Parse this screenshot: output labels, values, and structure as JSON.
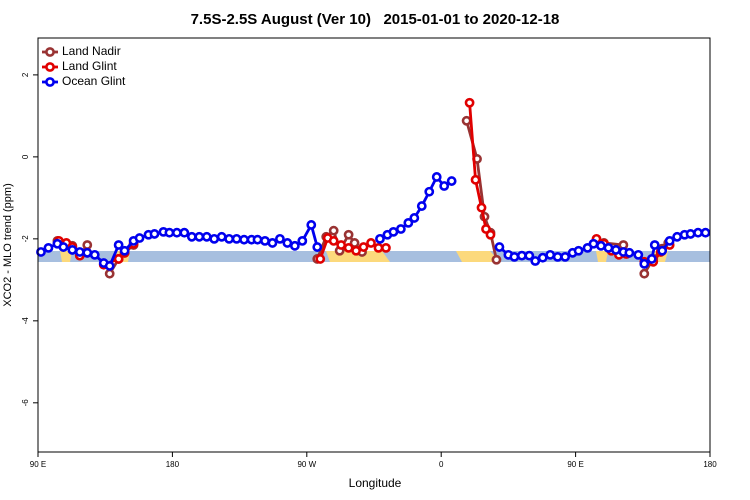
{
  "chart_data": {
    "type": "line",
    "title": "7.5S-2.5S August (Ver 10)   2015-01-01 to 2020-12-18",
    "x_label": "Longitude",
    "y_label": "XCO2 - MLO trend (ppm)",
    "xlim": [
      90,
      540
    ],
    "xticks": [
      {
        "value": 90,
        "label": "90 E"
      },
      {
        "value": 180,
        "label": "180"
      },
      {
        "value": 270,
        "label": "90 W"
      },
      {
        "value": 360,
        "label": "0"
      },
      {
        "value": 450,
        "label": "90 E"
      },
      {
        "value": 540,
        "label": "180"
      }
    ],
    "ylim": [
      -7.2,
      2.9
    ],
    "yticks": [
      2,
      0,
      -2,
      -4,
      -6
    ],
    "legend": "top-left",
    "series": [
      {
        "name": "Land Nadir",
        "color": "#993333",
        "x": [
          103,
          107,
          113,
          118,
          123,
          null,
          138,
          144,
          148,
          154,
          null,
          277,
          283,
          288,
          292,
          298,
          302,
          307,
          null,
          377,
          384,
          389,
          393,
          397,
          null,
          464,
          469,
          482,
          null,
          496,
          502,
          508,
          512
        ],
        "values": [
          -2.05,
          -2.12,
          -2.17,
          -2.41,
          -2.15,
          null,
          -2.85,
          -2.49,
          -2.34,
          -2.15,
          null,
          -2.49,
          -1.95,
          -1.8,
          -2.29,
          -1.9,
          -2.1,
          -2.32,
          null,
          0.88,
          -0.05,
          -1.46,
          -1.85,
          -2.51,
          null,
          -2.05,
          -2.1,
          -2.15,
          null,
          -2.85,
          -2.49,
          -2.24,
          -2.1
        ]
      },
      {
        "name": "Land Glint",
        "color": "#e00000",
        "x": [
          104,
          109,
          113,
          118,
          123,
          null,
          134,
          144,
          148,
          154,
          null,
          279,
          284,
          288,
          293,
          298,
          303,
          308,
          313,
          318,
          323,
          null,
          379,
          383,
          387,
          390,
          393,
          null,
          464,
          469,
          474,
          479,
          484,
          null,
          496,
          502,
          507,
          513
        ],
        "values": [
          -2.05,
          -2.1,
          -2.2,
          -2.41,
          -2.34,
          null,
          -2.63,
          -2.49,
          -2.34,
          -2.12,
          null,
          -2.49,
          -1.98,
          -2.05,
          -2.15,
          -2.22,
          -2.29,
          -2.2,
          -2.1,
          -2.22,
          -2.22,
          null,
          1.32,
          -0.56,
          -1.24,
          -1.76,
          -1.9,
          null,
          -2.0,
          -2.12,
          -2.29,
          -2.39,
          -2.37,
          null,
          -2.56,
          -2.56,
          -2.32,
          -2.15
        ]
      },
      {
        "name": "Ocean Glint",
        "color": "#0000ee",
        "x": [
          92,
          97,
          103,
          107,
          113,
          118,
          123,
          128,
          134,
          138,
          144,
          148,
          154,
          158,
          164,
          168,
          174,
          178,
          183,
          188,
          193,
          198,
          203,
          208,
          213,
          218,
          223,
          228,
          233,
          237,
          242,
          247,
          252,
          257,
          262,
          267,
          273,
          277,
          null,
          319,
          324,
          328,
          333,
          338,
          342,
          347,
          352,
          357,
          362,
          367,
          null,
          399,
          405,
          409,
          414,
          419,
          423,
          428,
          433,
          438,
          443,
          448,
          452,
          458,
          462,
          467,
          472,
          477,
          482,
          486,
          492,
          496,
          501,
          503,
          508,
          513,
          518,
          523,
          527,
          532,
          537
        ],
        "values": [
          -2.32,
          -2.22,
          -2.12,
          -2.2,
          -2.27,
          -2.32,
          -2.34,
          -2.39,
          -2.59,
          -2.66,
          -2.15,
          -2.29,
          -2.05,
          -1.98,
          -1.9,
          -1.88,
          -1.83,
          -1.85,
          -1.85,
          -1.85,
          -1.95,
          -1.95,
          -1.95,
          -2.0,
          -1.95,
          -2.0,
          -2.0,
          -2.02,
          -2.02,
          -2.02,
          -2.05,
          -2.1,
          -2.0,
          -2.1,
          -2.17,
          -2.05,
          -1.66,
          -2.2,
          null,
          -2.0,
          -1.9,
          -1.83,
          -1.76,
          -1.61,
          -1.49,
          -1.2,
          -0.85,
          -0.49,
          -0.71,
          -0.59,
          null,
          -2.2,
          -2.39,
          -2.44,
          -2.41,
          -2.41,
          -2.54,
          -2.46,
          -2.39,
          -2.44,
          -2.44,
          -2.34,
          -2.29,
          -2.22,
          -2.12,
          -2.17,
          -2.22,
          -2.27,
          -2.32,
          -2.34,
          -2.39,
          -2.61,
          -2.49,
          -2.15,
          -2.29,
          -2.05,
          -1.95,
          -1.9,
          -1.88,
          -1.85,
          -1.85
        ]
      }
    ]
  }
}
